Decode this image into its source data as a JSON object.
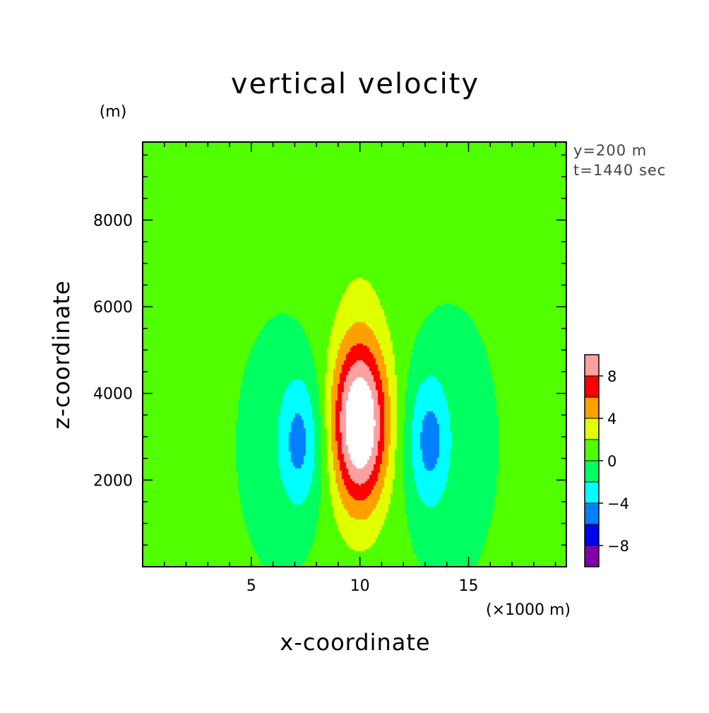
{
  "chart_data": {
    "type": "heatmap",
    "title": "vertical velocity",
    "xlabel": "x-coordinate",
    "ylabel": "z-coordinate",
    "x_unit": "(×1000 m)",
    "y_unit": "(m)",
    "annotations": [
      "y=200 m",
      "t=1440 sec"
    ],
    "xlim": [
      0,
      19.5
    ],
    "ylim": [
      0,
      9800
    ],
    "x_ticks": [
      5,
      10,
      15
    ],
    "y_ticks": [
      2000,
      4000,
      6000,
      8000
    ],
    "colorbar": {
      "levels": [
        -10,
        -8,
        -6,
        -4,
        -2,
        0,
        2,
        4,
        6,
        8,
        10
      ],
      "tick_labels": [
        {
          "value": -8,
          "text": "−8"
        },
        {
          "value": -4,
          "text": "−4"
        },
        {
          "value": 0,
          "text": "0"
        },
        {
          "value": 4,
          "text": "4"
        },
        {
          "value": 8,
          "text": "8"
        }
      ],
      "colors": [
        "#8000a8",
        "#0000f0",
        "#0080ff",
        "#00ffff",
        "#00ff60",
        "#50ff00",
        "#e0ff00",
        "#ffa000",
        "#ff0000",
        "#ffa0a0"
      ],
      "over_color": "#ffffff"
    },
    "field": {
      "center_x": 10.0,
      "peak_updraft_z": 3300,
      "peak_updraft_max": 12,
      "downdraft_centers_x": [
        7.2,
        13.2
      ],
      "downdraft_z": 2900,
      "downdraft_min": -5
    }
  }
}
